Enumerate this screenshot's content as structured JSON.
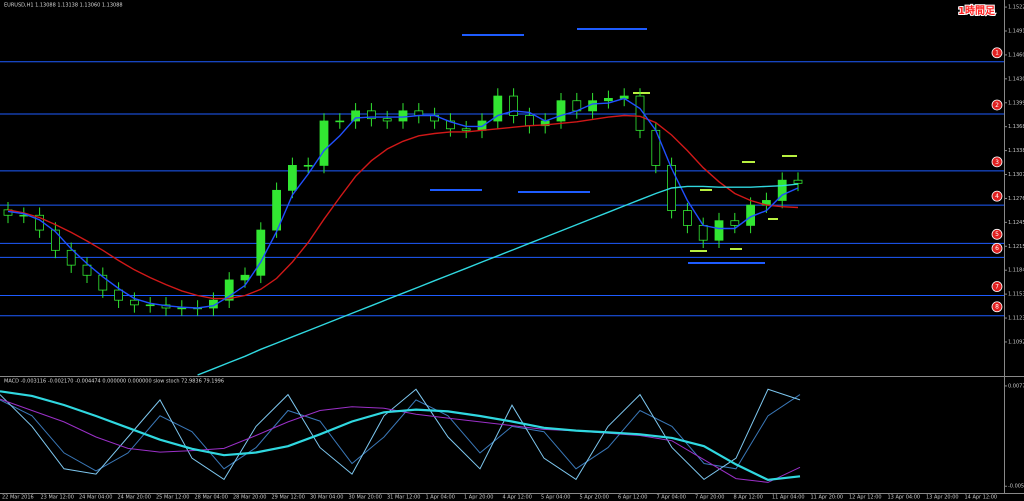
{
  "chart_data": [
    {
      "type": "candlestick",
      "title": "EURUSD,H1 1.13088 1.13138 1.13060 1.13088",
      "annotation": "1時間足",
      "ylim": [
        1.105,
        1.153
      ],
      "yticks": [
        1.15222,
        1.14915,
        1.14608,
        1.14301,
        1.13994,
        1.13687,
        1.1338,
        1.13073,
        1.12766,
        1.12459,
        1.12152,
        1.11845,
        1.11538,
        1.11231,
        1.10924
      ],
      "time_labels": [
        "22 Mar 2016",
        "23 Mar 12:00",
        "24 Mar 04:00",
        "24 Mar 20:00",
        "25 Mar 12:00",
        "28 Mar 04:00",
        "28 Mar 20:00",
        "29 Mar 12:00",
        "30 Mar 04:00",
        "30 Mar 20:00",
        "31 Mar 12:00",
        "1 Apr 04:00",
        "1 Apr 20:00",
        "4 Apr 12:00",
        "5 Apr 04:00",
        "5 Apr 20:00",
        "6 Apr 12:00",
        "7 Apr 04:00",
        "7 Apr 20:00",
        "8 Apr 12:00",
        "11 Apr 04:00",
        "11 Apr 20:00",
        "12 Apr 12:00",
        "13 Apr 04:00",
        "13 Apr 20:00",
        "14 Apr 12:00"
      ],
      "up_color": "#32e632",
      "down_color": "#000000",
      "wick_color": "#32e632",
      "open": [
        1.1262,
        1.1255,
        1.1255,
        1.1236,
        1.121,
        1.1191,
        1.1178,
        1.1159,
        1.1146,
        1.114,
        1.114,
        1.1136,
        1.1136,
        1.1136,
        1.1146,
        1.1172,
        1.1178,
        1.1236,
        1.1287,
        1.1319,
        1.1319,
        1.1376,
        1.1376,
        1.1389,
        1.1379,
        1.1376,
        1.1389,
        1.1383,
        1.1376,
        1.1366,
        1.1364,
        1.1376,
        1.1408,
        1.1383,
        1.137,
        1.1376,
        1.1402,
        1.1389,
        1.1402,
        1.1405,
        1.1408,
        1.1364,
        1.1319,
        1.1261,
        1.1242,
        1.1223,
        1.1248,
        1.1242,
        1.1268,
        1.1274,
        1.13
      ],
      "high": [
        1.1272,
        1.1265,
        1.1265,
        1.1246,
        1.122,
        1.1201,
        1.1188,
        1.1169,
        1.1156,
        1.115,
        1.115,
        1.1146,
        1.1146,
        1.1156,
        1.1182,
        1.1188,
        1.1246,
        1.1297,
        1.1329,
        1.1329,
        1.1386,
        1.1386,
        1.1399,
        1.1399,
        1.1389,
        1.1399,
        1.1399,
        1.1393,
        1.1386,
        1.1376,
        1.1386,
        1.1418,
        1.1418,
        1.1393,
        1.1386,
        1.1412,
        1.1412,
        1.1412,
        1.1415,
        1.1418,
        1.1418,
        1.1374,
        1.1329,
        1.1271,
        1.1252,
        1.1258,
        1.1258,
        1.1278,
        1.1284,
        1.131,
        1.131
      ],
      "low": [
        1.1245,
        1.1245,
        1.1226,
        1.12,
        1.1181,
        1.1168,
        1.1149,
        1.1136,
        1.113,
        1.113,
        1.1126,
        1.1126,
        1.1126,
        1.1126,
        1.1136,
        1.1162,
        1.1168,
        1.1226,
        1.1277,
        1.1309,
        1.1309,
        1.1366,
        1.1366,
        1.1369,
        1.1366,
        1.1366,
        1.1373,
        1.1366,
        1.1356,
        1.1354,
        1.1354,
        1.1366,
        1.1373,
        1.136,
        1.136,
        1.1366,
        1.1379,
        1.1379,
        1.1392,
        1.1395,
        1.1354,
        1.1309,
        1.1251,
        1.1232,
        1.1213,
        1.1213,
        1.1232,
        1.1232,
        1.1258,
        1.1264,
        1.1286
      ],
      "close": [
        1.1255,
        1.1255,
        1.1236,
        1.121,
        1.1191,
        1.1178,
        1.1159,
        1.1146,
        1.114,
        1.114,
        1.1136,
        1.1136,
        1.1136,
        1.1146,
        1.1172,
        1.1178,
        1.1236,
        1.1287,
        1.1319,
        1.1319,
        1.1376,
        1.1376,
        1.1389,
        1.1379,
        1.1376,
        1.1389,
        1.1383,
        1.1376,
        1.1366,
        1.1364,
        1.1376,
        1.1408,
        1.1383,
        1.137,
        1.1376,
        1.1402,
        1.1389,
        1.1402,
        1.1405,
        1.1408,
        1.1364,
        1.1319,
        1.1261,
        1.1242,
        1.1223,
        1.1248,
        1.1242,
        1.1268,
        1.1274,
        1.13,
        1.1296
      ],
      "lines": [
        {
          "color": "#d01818",
          "values": [
            1.1262,
            1.1258,
            1.1252,
            1.1243,
            1.1233,
            1.1222,
            1.121,
            1.1197,
            1.1185,
            1.1175,
            1.1166,
            1.1158,
            1.1152,
            1.1148,
            1.1148,
            1.1152,
            1.116,
            1.1174,
            1.1195,
            1.122,
            1.125,
            1.1278,
            1.1305,
            1.1325,
            1.134,
            1.135,
            1.1357,
            1.136,
            1.1362,
            1.1362,
            1.1364,
            1.1366,
            1.1368,
            1.137,
            1.1371,
            1.1373,
            1.1375,
            1.1378,
            1.1381,
            1.1383,
            1.1382,
            1.1374,
            1.1358,
            1.1338,
            1.1316,
            1.1298,
            1.1283,
            1.1274,
            1.1268,
            1.1266,
            1.1265
          ]
        },
        {
          "color": "#2050ff",
          "values": [
            1.126,
            1.1257,
            1.1249,
            1.1234,
            1.1212,
            1.1193,
            1.1176,
            1.1161,
            1.1148,
            1.1142,
            1.1139,
            1.1137,
            1.1136,
            1.1139,
            1.1151,
            1.1165,
            1.1195,
            1.1234,
            1.1281,
            1.1308,
            1.1338,
            1.1357,
            1.138,
            1.1381,
            1.1381,
            1.1381,
            1.1383,
            1.1383,
            1.1375,
            1.1369,
            1.1369,
            1.1383,
            1.1389,
            1.1387,
            1.1376,
            1.1383,
            1.1389,
            1.1398,
            1.1399,
            1.1405,
            1.1392,
            1.1364,
            1.1315,
            1.1274,
            1.1242,
            1.1238,
            1.1238,
            1.1253,
            1.1261,
            1.1281,
            1.129
          ]
        },
        {
          "color": "#30d8e0",
          "values": [
            null,
            null,
            null,
            null,
            null,
            null,
            null,
            null,
            null,
            null,
            null,
            null,
            1.105,
            1.1058,
            1.1066,
            1.1074,
            1.1083,
            1.1091,
            1.1099,
            1.1107,
            1.1115,
            1.1123,
            1.1131,
            1.1139,
            1.1147,
            1.1155,
            1.1163,
            1.1171,
            1.1179,
            1.1187,
            1.1195,
            1.1203,
            1.1211,
            1.1219,
            1.1227,
            1.1235,
            1.1243,
            1.1251,
            1.1259,
            1.1267,
            1.1275,
            1.1283,
            1.129,
            1.1292,
            1.1292,
            1.1291,
            1.1291,
            1.1291,
            1.1292,
            1.1293,
            1.1295
          ]
        }
      ],
      "level_color": "#1e5cff",
      "levels": [
        1.1452,
        1.1385,
        1.1312,
        1.1268,
        1.1219,
        1.1201,
        1.1152,
        1.1126
      ],
      "level_labels": [
        "1",
        "2",
        "3",
        "4",
        "5",
        "6",
        "7",
        "8"
      ]
    },
    {
      "type": "line",
      "title": "MACD -0.003116 -0.002170 -0.004474 0.000000 0.000000 slow stoch 72.9836 79.1996",
      "ylim": [
        -0.006,
        0.008
      ],
      "yticks": [
        0.007745,
        -0.005504
      ],
      "y2lim": [
        0,
        100
      ],
      "series": [
        {
          "color": "#30d8e0",
          "values": [
            0.00703,
            0.00643,
            0.00522,
            0.00378,
            0.00221,
            0.00064,
            -0.00056,
            -0.00141,
            -0.00105,
            -0.00021,
            0.00136,
            0.00305,
            0.00426,
            0.00462,
            0.00438,
            0.00378,
            0.00305,
            0.00221,
            0.00185,
            0.00161,
            0.00136,
            0.00088,
            -0.00021,
            -0.00262,
            -0.00467,
            -0.00419
          ]
        },
        {
          "color": "#9b30c8",
          "values": [
            0.006,
            0.0045,
            0.003,
            0.001,
            -0.0005,
            -0.001,
            -0.0008,
            -0.0005,
            0.0012,
            0.003,
            0.0045,
            0.005,
            0.0048,
            0.004,
            0.0035,
            0.003,
            0.0025,
            0.002,
            0.0018,
            0.0015,
            0.0012,
            0.0005,
            -0.002,
            -0.0045,
            -0.005,
            -0.003
          ]
        },
        {
          "color": "#7ec8f0",
          "axis": "y2",
          "values": [
            90,
            60,
            20,
            15,
            50,
            85,
            30,
            10,
            60,
            90,
            40,
            15,
            70,
            95,
            50,
            20,
            80,
            30,
            10,
            60,
            90,
            40,
            10,
            30,
            95,
            85
          ]
        },
        {
          "color": "#3a78b8",
          "axis": "y2",
          "values": [
            85,
            70,
            35,
            18,
            35,
            70,
            55,
            20,
            40,
            75,
            65,
            25,
            50,
            85,
            70,
            35,
            60,
            55,
            20,
            40,
            75,
            60,
            25,
            20,
            70,
            90
          ]
        }
      ]
    }
  ]
}
